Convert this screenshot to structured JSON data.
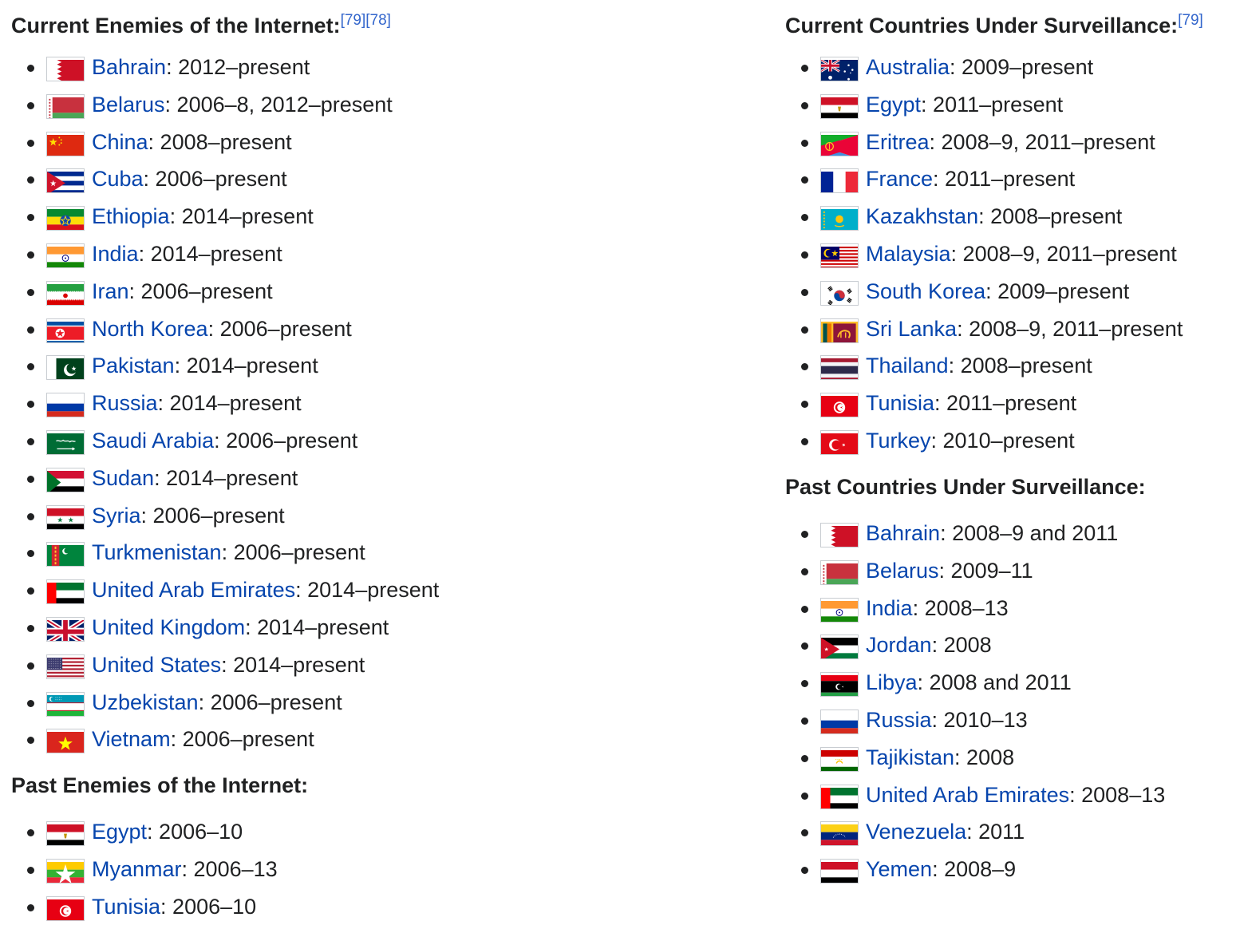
{
  "current_enemies": {
    "heading": "Current Enemies of the Internet:",
    "refs": [
      "[79]",
      "[78]"
    ],
    "items": [
      {
        "country": "Bahrain",
        "period": ": 2012–present",
        "flag": "bahrain-flag-icon"
      },
      {
        "country": "Belarus",
        "period": ": 2006–8, 2012–present",
        "flag": "belarus-flag-icon"
      },
      {
        "country": "China",
        "period": ": 2008–present",
        "flag": "china-flag-icon"
      },
      {
        "country": "Cuba",
        "period": ": 2006–present",
        "flag": "cuba-flag-icon"
      },
      {
        "country": "Ethiopia",
        "period": ": 2014–present",
        "flag": "ethiopia-flag-icon"
      },
      {
        "country": "India",
        "period": ": 2014–present",
        "flag": "india-flag-icon"
      },
      {
        "country": "Iran",
        "period": ": 2006–present",
        "flag": "iran-flag-icon"
      },
      {
        "country": "North Korea",
        "period": ": 2006–present",
        "flag": "north-korea-flag-icon"
      },
      {
        "country": "Pakistan",
        "period": ": 2014–present",
        "flag": "pakistan-flag-icon"
      },
      {
        "country": "Russia",
        "period": ": 2014–present",
        "flag": "russia-flag-icon"
      },
      {
        "country": "Saudi Arabia",
        "period": ": 2006–present",
        "flag": "saudi-arabia-flag-icon"
      },
      {
        "country": "Sudan",
        "period": ": 2014–present",
        "flag": "sudan-flag-icon"
      },
      {
        "country": "Syria",
        "period": ": 2006–present",
        "flag": "syria-flag-icon"
      },
      {
        "country": "Turkmenistan",
        "period": ": 2006–present",
        "flag": "turkmenistan-flag-icon"
      },
      {
        "country": "United Arab Emirates",
        "period": ": 2014–present",
        "flag": "uae-flag-icon"
      },
      {
        "country": "United Kingdom",
        "period": ": 2014–present",
        "flag": "uk-flag-icon"
      },
      {
        "country": "United States",
        "period": ": 2014–present",
        "flag": "usa-flag-icon"
      },
      {
        "country": "Uzbekistan",
        "period": ": 2006–present",
        "flag": "uzbekistan-flag-icon"
      },
      {
        "country": "Vietnam",
        "period": ": 2006–present",
        "flag": "vietnam-flag-icon"
      }
    ]
  },
  "past_enemies": {
    "heading": "Past Enemies of the Internet:",
    "items": [
      {
        "country": "Egypt",
        "period": ": 2006–10",
        "flag": "egypt-flag-icon"
      },
      {
        "country": "Myanmar",
        "period": ": 2006–13",
        "flag": "myanmar-flag-icon"
      },
      {
        "country": "Tunisia",
        "period": ": 2006–10",
        "flag": "tunisia-flag-icon"
      }
    ]
  },
  "current_surveillance": {
    "heading": "Current Countries Under Surveillance:",
    "refs": [
      "[79]"
    ],
    "items": [
      {
        "country": "Australia",
        "period": ": 2009–present",
        "flag": "australia-flag-icon"
      },
      {
        "country": "Egypt",
        "period": ": 2011–present",
        "flag": "egypt-flag-icon"
      },
      {
        "country": "Eritrea",
        "period": ": 2008–9, 2011–present",
        "flag": "eritrea-flag-icon"
      },
      {
        "country": "France",
        "period": ": 2011–present",
        "flag": "france-flag-icon"
      },
      {
        "country": "Kazakhstan",
        "period": ": 2008–present",
        "flag": "kazakhstan-flag-icon"
      },
      {
        "country": "Malaysia",
        "period": ": 2008–9, 2011–present",
        "flag": "malaysia-flag-icon"
      },
      {
        "country": "South Korea",
        "period": ": 2009–present",
        "flag": "south-korea-flag-icon"
      },
      {
        "country": "Sri Lanka",
        "period": ": 2008–9, 2011–present",
        "flag": "sri-lanka-flag-icon"
      },
      {
        "country": "Thailand",
        "period": ": 2008–present",
        "flag": "thailand-flag-icon"
      },
      {
        "country": "Tunisia",
        "period": ": 2011–present",
        "flag": "tunisia-flag-icon"
      },
      {
        "country": "Turkey",
        "period": ": 2010–present",
        "flag": "turkey-flag-icon"
      }
    ]
  },
  "past_surveillance": {
    "heading": "Past Countries Under Surveillance:",
    "items": [
      {
        "country": "Bahrain",
        "period": ": 2008–9 and 2011",
        "flag": "bahrain-flag-icon"
      },
      {
        "country": "Belarus",
        "period": ": 2009–11",
        "flag": "belarus-flag-icon"
      },
      {
        "country": "India",
        "period": ": 2008–13",
        "flag": "india-flag-icon"
      },
      {
        "country": "Jordan",
        "period": ": 2008",
        "flag": "jordan-flag-icon"
      },
      {
        "country": "Libya",
        "period": ": 2008 and 2011",
        "flag": "libya-flag-icon"
      },
      {
        "country": "Russia",
        "period": ": 2010–13",
        "flag": "russia-flag-icon"
      },
      {
        "country": "Tajikistan",
        "period": ": 2008",
        "flag": "tajikistan-flag-icon"
      },
      {
        "country": "United Arab Emirates",
        "period": ": 2008–13",
        "flag": "uae-flag-icon"
      },
      {
        "country": "Venezuela",
        "period": ": 2011",
        "flag": "venezuela-flag-icon"
      },
      {
        "country": "Yemen",
        "period": ": 2008–9",
        "flag": "yemen-flag-icon"
      }
    ]
  },
  "colors": {
    "link": "#0645ad",
    "ref_link": "#3366cc",
    "text": "#202122"
  }
}
